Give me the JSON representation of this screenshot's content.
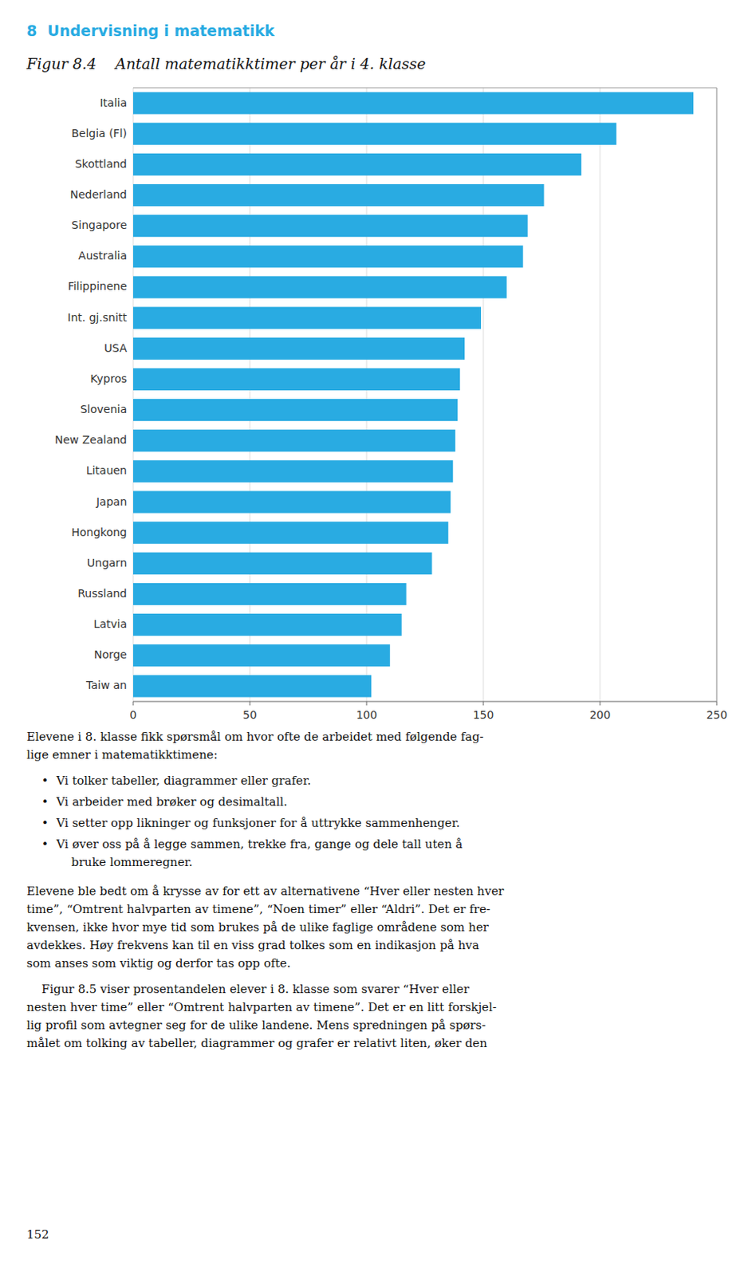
{
  "header": "8  Undervisning i matematikk",
  "header_color": "#29ABE2",
  "chart_data": {
    "type": "bar",
    "orientation": "horizontal",
    "title": "Figur 8.4    Antall matematikktimer per år i 4. klasse",
    "categories": [
      "Taiw an",
      "Norge",
      "Latvia",
      "Russland",
      "Ungarn",
      "Hongkong",
      "Japan",
      "Litauen",
      "New Zealand",
      "Slovenia",
      "Kypros",
      "USA",
      "Int. gj.snitt",
      "Filippinene",
      "Australia",
      "Singapore",
      "Nederland",
      "Skottland",
      "Belgia (Fl)",
      "Italia"
    ],
    "values": [
      102,
      110,
      115,
      117,
      128,
      135,
      136,
      137,
      138,
      139,
      140,
      142,
      149,
      160,
      167,
      169,
      176,
      192,
      207,
      240
    ],
    "color": "#29ABE2",
    "xlim": [
      0,
      250
    ],
    "xticks": [
      0,
      50,
      100,
      150,
      200,
      250
    ],
    "grid": true
  },
  "bullet": "•",
  "body": [
    {
      "lines": [
        "Elevene i 8. klasse fikk spørsmål om hvor ofte de arbeidet med følgende fag-",
        "lige emner i matematikktimene:"
      ]
    },
    {
      "bullets": [
        [
          "Vi tolker tabeller, diagrammer eller grafer."
        ],
        [
          "Vi arbeider med brøker og desimaltall."
        ],
        [
          "Vi setter opp likninger og funksjoner for å uttrykke sammenhenger."
        ],
        [
          "Vi øver oss på å legge sammen, trekke fra, gange og dele tall uten å",
          "    bruke lommeregner."
        ]
      ]
    },
    {
      "lines": [
        "Elevene ble bedt om å krysse av for ett av alternativene “Hver eller nesten hver",
        "time”, “Omtrent halvparten av timene”, “Noen timer” eller “Aldri”. Det er fre-",
        "kvensen, ikke hvor mye tid som brukes på de ulike faglige områdene som her",
        "avdekkes. Høy frekvens kan til en viss grad tolkes som en indikasjon på hva",
        "som anses som viktig og derfor tas opp ofte."
      ]
    },
    {
      "lines": [
        "    Figur 8.5 viser prosentandelen elever i 8. klasse som svarer “Hver eller",
        "nesten hver time” eller “Omtrent halvparten av timene”. Det er en litt forskjel-",
        "lig profil som avtegner seg for de ulike landene. Mens spredningen på spørs-",
        "målet om tolking av tabeller, diagrammer og grafer er relativt liten, øker den"
      ]
    }
  ],
  "page_number": "152"
}
